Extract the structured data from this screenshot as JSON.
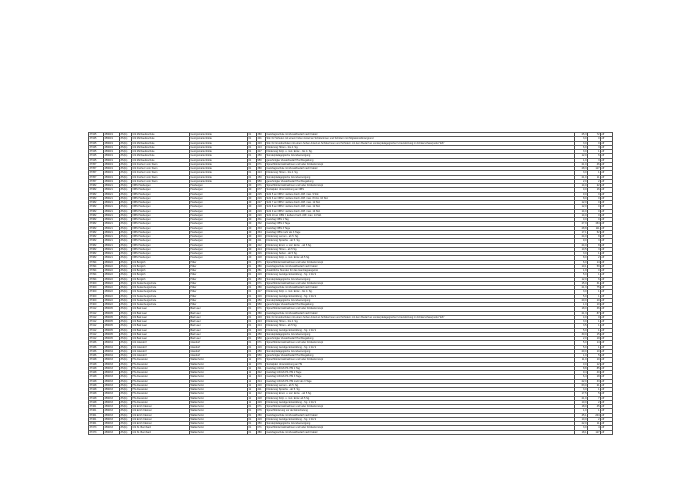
{
  "table": {
    "rows": [
      [
        "37345",
        "459019",
        "ZS(G)",
        "GS Michaelisschule",
        "Georgsmarienhütte",
        "01",
        "380",
        "Ganztagsschule mit Zusatzbedarf nach Faktor",
        "25,3",
        "72",
        "off"
      ],
      [
        "37345",
        "459019",
        "ZS(G)",
        "GS Michaelisschule",
        "Georgsmarienhütte",
        "01",
        "401",
        "Std. für Schulen mit einem hohen Anteil an Schülerinnen und Schülern mit Migrationshintergrund",
        "3,0",
        "0",
        "off"
      ],
      [
        "37345",
        "459019",
        "ZS(G)",
        "GS Michaelisschule",
        "Georgsmarienhütte",
        "01",
        "403",
        "Std. für Grundschulen mit einem hohen Anteil an Schülerinnen und Schülern mit dem Bedarf an sonderpädagogischer Unterstützung im Förderschwerpunkt \"ES\"",
        "3,0",
        "0",
        "off"
      ],
      [
        "37345",
        "459019",
        "ZS(G)",
        "GS Michaelisschule",
        "Georgsmarienhütte",
        "01",
        "413",
        "Förderung Hören - bis 4. Sg.",
        "6,0",
        "3",
        "off"
      ],
      [
        "37345",
        "459019",
        "ZS(G)",
        "GS Michaelisschule",
        "Georgsmarienhütte",
        "01",
        "417",
        "Förderung Körp. u. mot. Entw. - bis 4. Sg.",
        "3,0",
        "1",
        "off"
      ],
      [
        "37345",
        "459019",
        "ZS(G)",
        "GS Michaelisschule",
        "Georgsmarienhütte",
        "01",
        "450",
        "Sonderpädagogische Grundversorgung",
        "12,0",
        "6",
        "off"
      ],
      [
        "37345",
        "459019",
        "ZS(G)",
        "GS Michaelisschule",
        "Georgsmarienhütte",
        "01",
        "950",
        "genehmigter Zusatzbedarf Hochbegabung",
        "1,0",
        "3",
        "off"
      ],
      [
        "37357",
        "459019",
        "ZS(G)",
        "GS Freiherr vom Stein",
        "Georgsmarienhütte",
        "01",
        "071",
        "Sprachfördermaßnahmen und/ oder Förderkonzept",
        "21,0",
        "46",
        "off"
      ],
      [
        "37357",
        "459019",
        "ZS(G)",
        "GS Freiherr vom Stein",
        "Georgsmarienhütte",
        "01",
        "380",
        "Ganztagsschule mit Zusatzbedarf nach Faktor",
        "28,3",
        "117",
        "off"
      ],
      [
        "37357",
        "459019",
        "ZS(G)",
        "GS Freiherr vom Stein",
        "Georgsmarienhütte",
        "01",
        "413",
        "Förderung Hören - bis 4. Sg.",
        "3,0",
        "1",
        "off"
      ],
      [
        "37357",
        "459019",
        "ZS(G)",
        "GS Freiherr vom Stein",
        "Georgsmarienhütte",
        "01",
        "450",
        "Sonderpädagogische Grundversorgung",
        "21,0",
        "11",
        "off"
      ],
      [
        "37357",
        "459019",
        "ZS(G)",
        "GS Freiherr vom Stein",
        "Georgsmarienhütte",
        "01",
        "950",
        "genehmigter Zusatzbedarf Hochbegabung",
        "2,0",
        "2",
        "off"
      ],
      [
        "37382",
        "459021",
        "ZS(G)",
        "OBS Hasbergen",
        "Hasbergen",
        "40",
        "071",
        "Sprachfördermaßnahmen und/ oder Förderkonzept",
        "14,0",
        "22",
        "off"
      ],
      [
        "37382",
        "459021",
        "ZS(G)",
        "OBS Hasbergen",
        "Hasbergen",
        "40",
        "077",
        "Sozialpäd. Unterstützung an OBS",
        "0,0",
        "16",
        "off"
      ],
      [
        "37382",
        "459021",
        "ZS(G)",
        "OBS Hasbergen",
        "Hasbergen",
        "40",
        "215",
        "SoS 5 an OBS f. äußere Fach.-Diff. max. 9 Std.",
        "9,0",
        "0",
        "off"
      ],
      [
        "37382",
        "459021",
        "ZS(G)",
        "OBS Hasbergen",
        "Hasbergen",
        "40",
        "216",
        "SoS 6 an OBS f. äußere Fach.-Diff. max. 8 bzw. 16 Std.",
        "8,0",
        "0",
        "off"
      ],
      [
        "37382",
        "459021",
        "ZS(G)",
        "OBS Hasbergen",
        "Hasbergen",
        "40",
        "217",
        "SoS 7 an OBS f. äußere Fach.-Diff. max. 12 Std.",
        "12,0",
        "0",
        "off"
      ],
      [
        "37382",
        "459021",
        "ZS(G)",
        "OBS Hasbergen",
        "Hasbergen",
        "40",
        "218",
        "SoS 8 an OBS f. äußere Fach.-Diff. max. 12 Std.",
        "12,0",
        "0",
        "off"
      ],
      [
        "37382",
        "459021",
        "ZS(G)",
        "OBS Hasbergen",
        "Hasbergen",
        "40",
        "219",
        "SoS 9 an OBS f. äußere Fach.-Diff. max. 14 Std.",
        "14,0",
        "0",
        "off"
      ],
      [
        "37382",
        "459021",
        "ZS(G)",
        "OBS Hasbergen",
        "Hasbergen",
        "40",
        "220",
        "SoS 10 an OBS f. äußere Fach.-Diff. max. 14 Std.",
        "14,0",
        "0",
        "off"
      ],
      [
        "37382",
        "459021",
        "ZS(G)",
        "OBS Hasbergen",
        "Hasbergen",
        "40",
        "331",
        "Ganztag OBS 1 Tag",
        "0,0",
        "0",
        "off"
      ],
      [
        "37382",
        "459021",
        "ZS(G)",
        "OBS Hasbergen",
        "Hasbergen",
        "40",
        "332",
        "Ganztag OBS 2 Tage",
        "27,9",
        "154",
        "off"
      ],
      [
        "37382",
        "459021",
        "ZS(G)",
        "OBS Hasbergen",
        "Hasbergen",
        "40",
        "333",
        "Ganztag OBS 3 Tage",
        "28,8",
        "111",
        "off"
      ],
      [
        "37382",
        "459021",
        "ZS(G)",
        "OBS Hasbergen",
        "Hasbergen",
        "40",
        "334",
        "Ganztag OBS mehr als 3 Tage",
        "17,1",
        "52",
        "off"
      ],
      [
        "37382",
        "459021",
        "ZS(G)",
        "OBS Hasbergen",
        "Hasbergen",
        "40",
        "410",
        "Förderung Lernen - ab 5. Sg.",
        "24,0",
        "8",
        "off"
      ],
      [
        "37382",
        "459021",
        "ZS(G)",
        "OBS Hasbergen",
        "Hasbergen",
        "40",
        "411",
        "Förderung Sprache - ab 5. Sg.",
        "9,0",
        "3",
        "off"
      ],
      [
        "37382",
        "459021",
        "ZS(G)",
        "OBS Hasbergen",
        "Hasbergen",
        "40",
        "412",
        "Förderung Emot. u. soz. Entw. - ab 5 Sg.",
        "24,0",
        "8",
        "off"
      ],
      [
        "37382",
        "459021",
        "ZS(G)",
        "OBS Hasbergen",
        "Hasbergen",
        "40",
        "414",
        "Förderung Hören - ab 5 Sg.",
        "10,5",
        "3",
        "off"
      ],
      [
        "37382",
        "459021",
        "ZS(G)",
        "OBS Hasbergen",
        "Hasbergen",
        "40",
        "416",
        "Förderung Sehen - ab 5 Sg.",
        "3,0",
        "1",
        "off"
      ],
      [
        "37382",
        "459021",
        "ZS(G)",
        "OBS Hasbergen",
        "Hasbergen",
        "40",
        "418",
        "Förderung Körp. u. mot. Entw. ab 5 Sg.",
        "8,0",
        "2",
        "off"
      ],
      [
        "37394",
        "459022",
        "ZS(G)",
        "GS Borgloh",
        "Hilter",
        "01",
        "071",
        "Sprachfördermaßnahmen und/ oder Förderkonzept",
        "6,0",
        "14",
        "off"
      ],
      [
        "37394",
        "459022",
        "ZS(G)",
        "GS Borgloh",
        "Hilter",
        "01",
        "380",
        "Ganztagsschule mit Zusatzbedarf nach Faktor",
        "10,1",
        "59",
        "off"
      ],
      [
        "37394",
        "459022",
        "ZS(G)",
        "GS Borgloh",
        "Hilter",
        "01",
        "381",
        "Zusätzliche Stunden für das Ganztagsangebot",
        "1,9",
        "0",
        "off"
      ],
      [
        "37394",
        "459022",
        "ZS(G)",
        "GS Borgloh",
        "Hilter",
        "01",
        "419",
        "Förderung Geistige Entwicklung - Sg. 1 bis 9",
        "5,0",
        "1",
        "off"
      ],
      [
        "37394",
        "459022",
        "ZS(G)",
        "GS Borgloh",
        "Hilter",
        "01",
        "450",
        "Sonderpädagogische Grundversorgung",
        "12,0",
        "6",
        "off"
      ],
      [
        "37400",
        "459022",
        "ZS(G)",
        "GS Sudenbergschule",
        "Hilter",
        "01",
        "071",
        "Sprachfördermaßnahmen und/ oder Förderkonzept",
        "15,0",
        "31",
        "off"
      ],
      [
        "37400",
        "459022",
        "ZS(G)",
        "GS Sudenbergschule",
        "Hilter",
        "01",
        "380",
        "Ganztagsschule mit Zusatzbedarf nach Faktor",
        "21,3",
        "75",
        "off"
      ],
      [
        "37400",
        "459022",
        "ZS(G)",
        "GS Sudenbergschule",
        "Hilter",
        "01",
        "417",
        "Förderung Körp. u. mot. Entw. - bis 4. Sg.",
        "3,0",
        "1",
        "off"
      ],
      [
        "37400",
        "459022",
        "ZS(G)",
        "GS Sudenbergschule",
        "Hilter",
        "01",
        "419",
        "Förderung Geistige Entwicklung - Sg. 1 bis 9",
        "5,0",
        "1",
        "off"
      ],
      [
        "37400",
        "459022",
        "ZS(G)",
        "GS Sudenbergschule",
        "Hilter",
        "01",
        "450",
        "Sonderpädagogische Grundversorgung",
        "20,0",
        "10",
        "off"
      ],
      [
        "37400",
        "459022",
        "ZS(G)",
        "GS Sudenbergschule",
        "Hilter",
        "01",
        "950",
        "genehmigter Zusatzbedarf Hochbegabung",
        "1,0",
        "10",
        "off"
      ],
      [
        "37412",
        "459005",
        "ZS(G)",
        "GS Bad Laer",
        "Bad Laer",
        "01",
        "071",
        "Sprachfördermaßnahmen und/ oder Förderkonzept",
        "18,0",
        "36",
        "off"
      ],
      [
        "37412",
        "459005",
        "ZS(G)",
        "GS Bad Laer",
        "Bad Laer",
        "01",
        "380",
        "Ganztagsschule mit Zusatzbedarf nach Faktor",
        "21,3",
        "87",
        "off"
      ],
      [
        "37412",
        "459005",
        "ZS(G)",
        "GS Bad Laer",
        "Bad Laer",
        "01",
        "403",
        "Std. für Grundschulen mit einem hohen Anteil an Schülerinnen und Schülern mit dem Bedarf an sonderpädagogischer Unterstützung im Förderschwerpunkt \"ES\"",
        "4,0",
        "0",
        "off"
      ],
      [
        "37412",
        "459005",
        "ZS(G)",
        "GS Bad Laer",
        "Bad Laer",
        "01",
        "413",
        "Förderung Hören - bis 4. Sg.",
        "3,0",
        "1",
        "off"
      ],
      [
        "37412",
        "459005",
        "ZS(G)",
        "GS Bad Laer",
        "Bad Laer",
        "01",
        "414",
        "Förderung Hören - ab 5 Sg.",
        "3,5",
        "1",
        "off"
      ],
      [
        "37412",
        "459005",
        "ZS(G)",
        "GS Bad Laer",
        "Bad Laer",
        "01",
        "419",
        "Förderung Geistige Entwicklung - Sg. 1 bis 9",
        "5,0",
        "1",
        "off"
      ],
      [
        "37412",
        "459005",
        "ZS(G)",
        "GS Bad Laer",
        "Bad Laer",
        "01",
        "450",
        "Sonderpädagogische Grundversorgung",
        "30,0",
        "15",
        "off"
      ],
      [
        "37412",
        "459005",
        "ZS(G)",
        "GS Bad Laer",
        "Bad Laer",
        "01",
        "950",
        "genehmigter Zusatzbedarf Hochbegabung",
        "2,0",
        "19",
        "off"
      ],
      [
        "37436",
        "459034",
        "ZS(G)",
        "GS Glandorf",
        "Glandorf",
        "01",
        "071",
        "Sprachfördermaßnahmen und/ oder Förderkonzept",
        "5,0",
        "14",
        "off"
      ],
      [
        "37436",
        "459034",
        "ZS(G)",
        "GS Glandorf",
        "Glandorf",
        "01",
        "419",
        "Förderung Geistige Entwicklung - Sg. 1 bis 9",
        "5,0",
        "1",
        "off"
      ],
      [
        "37436",
        "459034",
        "ZS(G)",
        "GS Glandorf",
        "Glandorf",
        "01",
        "450",
        "Sonderpädagogische Grundversorgung",
        "20,0",
        "10",
        "off"
      ],
      [
        "37436",
        "459034",
        "ZS(G)",
        "GS Glandorf",
        "Glandorf",
        "01",
        "950",
        "genehmigter Zusatzbedarf Hochbegabung",
        "1,0",
        "5",
        "off"
      ],
      [
        "37448",
        "459033",
        "ZS(G)",
        "HS Alexander",
        "Wallenhorst",
        "11",
        "071",
        "Sprachfördermaßnahmen und/ oder Förderkonzept",
        "11,0",
        "10",
        "off"
      ],
      [
        "37448",
        "459033",
        "ZS(G)",
        "HS Alexander",
        "Wallenhorst",
        "11",
        "079",
        "Sozialpäd. Unterstützung an HS",
        "0,0",
        "12",
        "off"
      ],
      [
        "37448",
        "459033",
        "ZS(G)",
        "HS Alexander",
        "Wallenhorst",
        "11",
        "311",
        "Ganztag GS/GS Pb./HS 1 Tag",
        "8,8",
        "85",
        "off"
      ],
      [
        "37448",
        "459033",
        "ZS(G)",
        "HS Alexander",
        "Wallenhorst",
        "11",
        "312",
        "Ganztag GS/GS Pb./HS 2 Tage",
        "9,4",
        "40",
        "off"
      ],
      [
        "37448",
        "459033",
        "ZS(G)",
        "HS Alexander",
        "Wallenhorst",
        "11",
        "313",
        "Ganztag GS/GS Pb./HS 3 Tage",
        "6,4",
        "18",
        "off"
      ],
      [
        "37448",
        "459033",
        "ZS(G)",
        "HS Alexander",
        "Wallenhorst",
        "11",
        "314",
        "Ganztag GS/GS Pb./HS mehr als 3 Tage",
        "22,0",
        "33",
        "off"
      ],
      [
        "37448",
        "459033",
        "ZS(G)",
        "HS Alexander",
        "Wallenhorst",
        "11",
        "410",
        "Förderung Lernen - ab 5. Sg.",
        "63,0",
        "21",
        "off"
      ],
      [
        "37448",
        "459033",
        "ZS(G)",
        "HS Alexander",
        "Wallenhorst",
        "11",
        "411",
        "Förderung Sprache - ab 5. Sg.",
        "3,0",
        "1",
        "off"
      ],
      [
        "37448",
        "459033",
        "ZS(G)",
        "HS Alexander",
        "Wallenhorst",
        "11",
        "412",
        "Förderung Emot. u. soz. Entw. - ab 5 Sg.",
        "17,5",
        "5",
        "off"
      ],
      [
        "37448",
        "459033",
        "ZS(G)",
        "HS Alexander",
        "Wallenhorst",
        "11",
        "418",
        "Förderung Körp. u. mot. Entw. ab 5 Sg.",
        "21,0",
        "7",
        "off"
      ],
      [
        "37448",
        "459033",
        "ZS(G)",
        "HS Alexander",
        "Wallenhorst",
        "11",
        "419",
        "Förderung Geistige Entwicklung - Sg. 1 bis 9",
        "10,0",
        "2",
        "off"
      ],
      [
        "37461",
        "459033",
        "ZS(G)",
        "GS Erich Kästner",
        "Wallenhorst",
        "01",
        "071",
        "Sprachfördermaßnahmen und/ oder Förderkonzept",
        "18,0",
        "45",
        "off"
      ],
      [
        "37461",
        "459033",
        "ZS(G)",
        "GS Erich Kästner",
        "Wallenhorst",
        "01",
        "076",
        "Sprachförderung vor der Einschulung",
        "1,0",
        "1",
        "off"
      ],
      [
        "37461",
        "459033",
        "ZS(G)",
        "GS Erich Kästner",
        "Wallenhorst",
        "01",
        "380",
        "Ganztagsschule mit Zusatzbedarf nach Faktor",
        "45,1",
        "204",
        "off"
      ],
      [
        "37461",
        "459033",
        "ZS(G)",
        "GS Erich Kästner",
        "Wallenhorst",
        "01",
        "419",
        "Förderung Geistige Entwicklung - Sg. 1 bis 9",
        "10,0",
        "2",
        "off"
      ],
      [
        "37461",
        "459033",
        "ZS(G)",
        "GS Erich Kästner",
        "Wallenhorst",
        "01",
        "450",
        "Sonderpädagogische Grundversorgung",
        "22,0",
        "11",
        "off"
      ],
      [
        "37473",
        "459033",
        "ZS(G)",
        "GS St. Bernhard",
        "Wallenhorst",
        "01",
        "071",
        "Sprachfördermaßnahmen und/ oder Förderkonzept",
        "3,0",
        "4",
        "off"
      ],
      [
        "37473",
        "459033",
        "ZS(G)",
        "GS St. Bernhard",
        "Wallenhorst",
        "01",
        "380",
        "Ganztagsschule mit Zusatzbedarf nach Faktor",
        "18,1",
        "117",
        "off"
      ]
    ]
  }
}
